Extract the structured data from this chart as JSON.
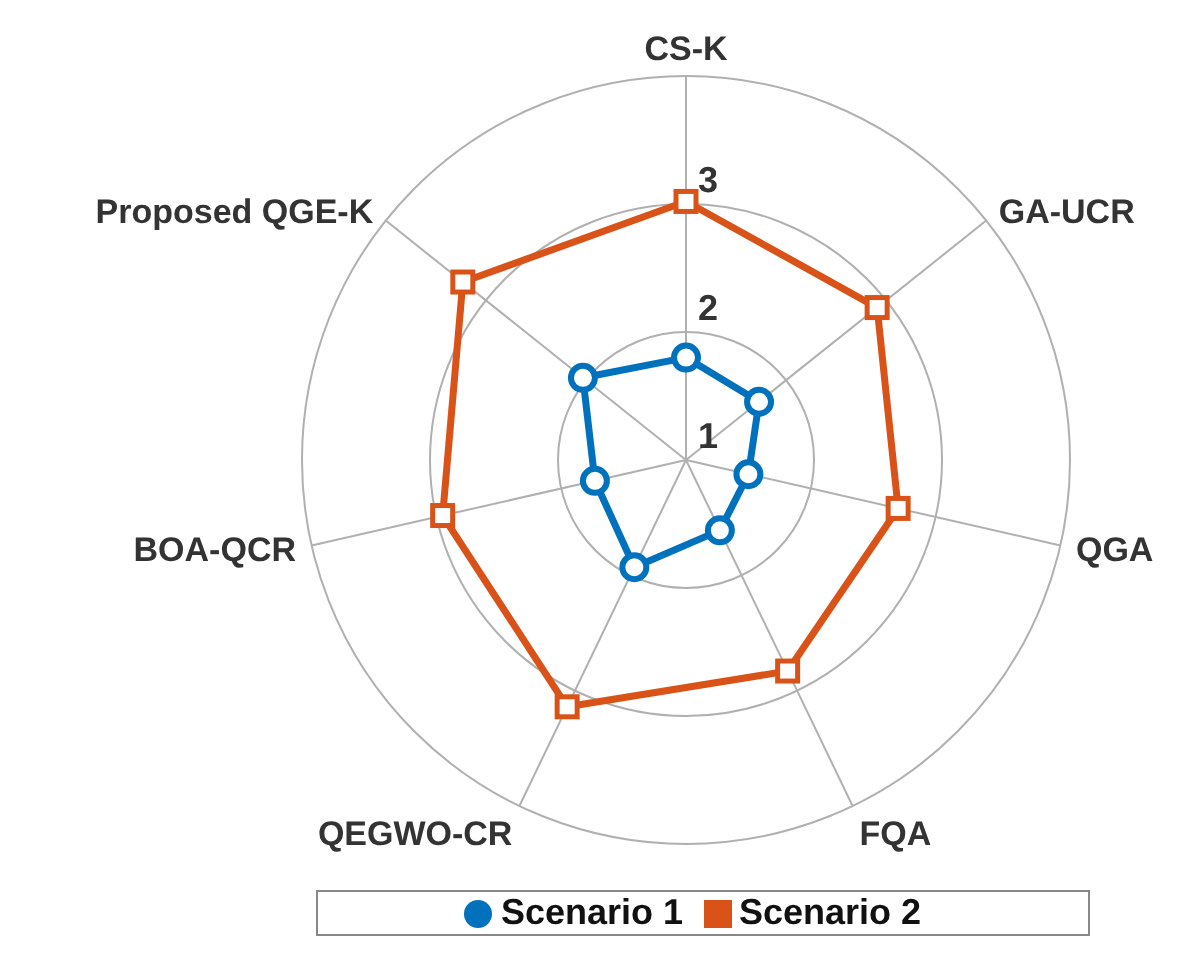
{
  "chart_data": {
    "type": "radar",
    "categories": [
      "CS-K",
      "GA-UCR",
      "QGA",
      "FQA",
      "QEGWO-CR",
      "BOA-QCR",
      "Proposed QGE-K"
    ],
    "series": [
      {
        "name": "Scenario 1",
        "color": "#0072bd",
        "marker": "circle",
        "values": [
          1.8,
          1.73,
          1.5,
          1.61,
          1.93,
          1.73,
          2.03
        ]
      },
      {
        "name": "Scenario 2",
        "color": "#d95319",
        "marker": "square",
        "values": [
          3.02,
          2.91,
          2.7,
          2.83,
          3.14,
          2.95,
          3.23
        ]
      }
    ],
    "ylim": [
      1,
      4
    ],
    "yticks": [
      1,
      2,
      3
    ],
    "grid": true,
    "legend": "bottom"
  }
}
